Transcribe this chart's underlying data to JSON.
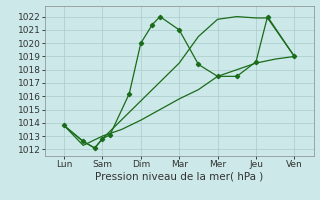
{
  "xlabel": "Pression niveau de la mer( hPa )",
  "ylim": [
    1011.5,
    1022.8
  ],
  "yticks": [
    1012,
    1013,
    1014,
    1015,
    1016,
    1017,
    1018,
    1019,
    1020,
    1021,
    1022
  ],
  "xtick_labels": [
    "Lun",
    "Sam",
    "Dim",
    "Mar",
    "Mer",
    "Jeu",
    "Ven"
  ],
  "xtick_positions": [
    0.5,
    1.5,
    2.5,
    3.5,
    4.5,
    5.5,
    6.5
  ],
  "xlim": [
    0,
    7
  ],
  "background_color": "#cce8e8",
  "grid_color": "#aacccc",
  "line_color": "#1a6b1a",
  "line1_x": [
    0.5,
    1.0,
    1.3,
    1.5,
    1.7,
    2.2,
    2.5,
    2.8,
    3.0,
    3.5,
    4.0,
    4.5,
    5.0,
    5.5,
    5.8,
    6.5
  ],
  "line1_y": [
    1013.8,
    1012.6,
    1012.1,
    1012.8,
    1013.1,
    1016.2,
    1020.0,
    1021.4,
    1022.0,
    1021.0,
    1018.4,
    1017.5,
    1017.5,
    1018.6,
    1022.0,
    1019.0
  ],
  "line2_x": [
    0.5,
    1.0,
    1.3,
    1.5,
    3.5,
    4.0,
    4.5,
    5.0,
    5.5,
    5.8,
    6.5
  ],
  "line2_y": [
    1013.8,
    1012.6,
    1012.1,
    1012.8,
    1018.5,
    1020.5,
    1021.8,
    1022.0,
    1021.9,
    1021.9,
    1019.0
  ],
  "line3_x": [
    0.5,
    1.0,
    1.5,
    2.0,
    2.5,
    3.0,
    3.5,
    4.0,
    4.5,
    5.0,
    5.5,
    6.0,
    6.5
  ],
  "line3_y": [
    1013.8,
    1012.3,
    1013.0,
    1013.5,
    1014.2,
    1015.0,
    1015.8,
    1016.5,
    1017.5,
    1018.0,
    1018.5,
    1018.8,
    1019.0
  ],
  "ylabel_fontsize": 6.5,
  "xlabel_fontsize": 7.5,
  "xtick_fontsize": 6.5,
  "linewidth": 0.9,
  "marker": "D",
  "markersize": 2.2
}
